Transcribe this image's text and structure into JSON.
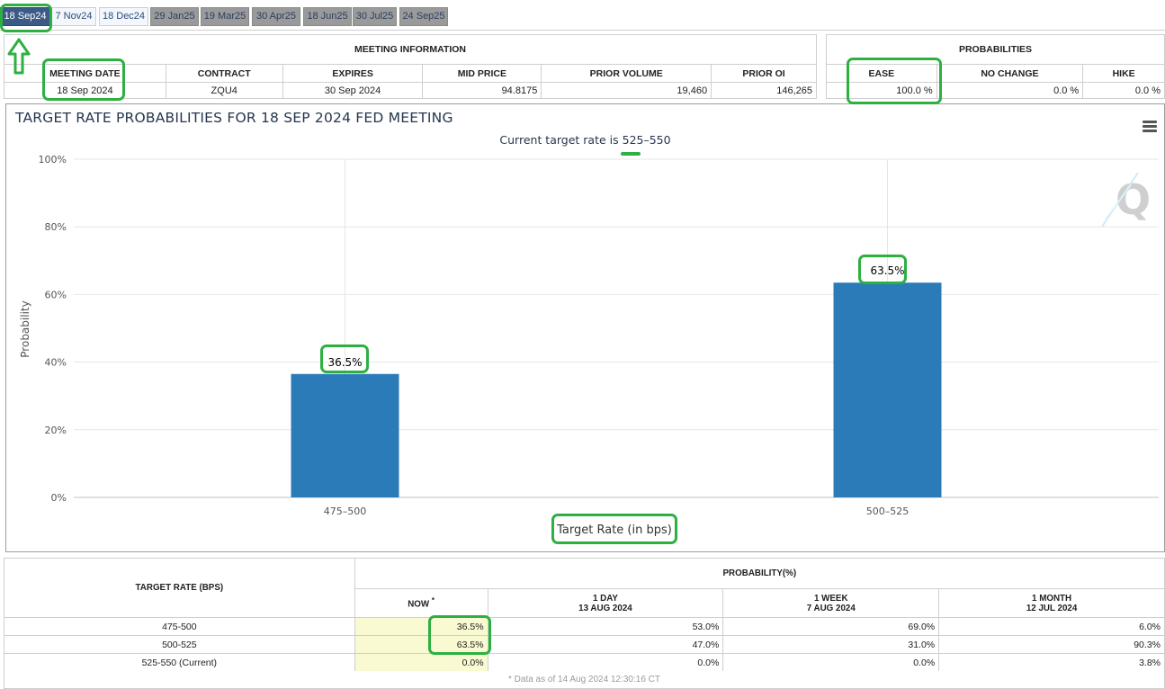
{
  "tabs": [
    {
      "label": "18 Sep24",
      "state": "active"
    },
    {
      "label": "7 Nov24",
      "state": "plain"
    },
    {
      "label": "18 Dec24",
      "state": "plain"
    },
    {
      "label": "29 Jan25",
      "state": "grey"
    },
    {
      "label": "19 Mar25",
      "state": "grey"
    },
    {
      "label": "30 Apr25",
      "state": "grey"
    },
    {
      "label": "18 Jun25",
      "state": "grey"
    },
    {
      "label": "30 Jul25",
      "state": "grey"
    },
    {
      "label": "24 Sep25",
      "state": "grey"
    }
  ],
  "meeting_info": {
    "section_title": "MEETING INFORMATION",
    "headers": {
      "meeting_date": "MEETING DATE",
      "contract": "CONTRACT",
      "expires": "EXPIRES",
      "mid_price": "MID PRICE",
      "prior_volume": "PRIOR VOLUME",
      "prior_oi": "PRIOR OI"
    },
    "values": {
      "meeting_date": "18 Sep 2024",
      "contract": "ZQU4",
      "expires": "30 Sep 2024",
      "mid_price": "94.8175",
      "prior_volume": "19,460",
      "prior_oi": "146,265"
    }
  },
  "probabilities": {
    "section_title": "PROBABILITIES",
    "headers": {
      "ease": "EASE",
      "no_change": "NO CHANGE",
      "hike": "HIKE"
    },
    "values": {
      "ease": "100.0 %",
      "no_change": "0.0 %",
      "hike": "0.0 %"
    }
  },
  "chart": {
    "title": "TARGET RATE PROBABILITIES FOR 18 SEP 2024 FED MEETING",
    "subtitle": "Current target rate is 525–550",
    "menu_icon": "hamburger-menu-icon",
    "watermark_icon": "q-logo-icon"
  },
  "chart_data": {
    "type": "bar",
    "title": "TARGET RATE PROBABILITIES FOR 18 SEP 2024 FED MEETING",
    "subtitle": "Current target rate is 525–550",
    "categories": [
      "475–500",
      "500–525"
    ],
    "values": [
      36.5,
      63.5
    ],
    "data_labels": [
      "36.5%",
      "63.5%"
    ],
    "xlabel": "Target Rate (in bps)",
    "ylabel": "Probability",
    "ylim": [
      0,
      100
    ],
    "yticks": [
      "0%",
      "20%",
      "40%",
      "60%",
      "80%",
      "100%"
    ],
    "grid": true,
    "bar_color": "#2b7bb9"
  },
  "prob_table": {
    "header_rate": "TARGET RATE (BPS)",
    "header_prob": "PROBABILITY(%)",
    "col_now": "NOW",
    "col_now_mark": "*",
    "col_day": {
      "line1": "1 DAY",
      "line2": "13 AUG 2024"
    },
    "col_week": {
      "line1": "1 WEEK",
      "line2": "7 AUG 2024"
    },
    "col_month": {
      "line1": "1 MONTH",
      "line2": "12 JUL 2024"
    },
    "rows": [
      {
        "rate": "475-500",
        "now": "36.5%",
        "day": "53.0%",
        "week": "69.0%",
        "month": "6.0%"
      },
      {
        "rate": "500-525",
        "now": "63.5%",
        "day": "47.0%",
        "week": "31.0%",
        "month": "90.3%"
      },
      {
        "rate": "525-550 (Current)",
        "now": "0.0%",
        "day": "0.0%",
        "week": "0.0%",
        "month": "3.8%"
      }
    ],
    "footnote": "* Data as of 14 Aug 2024 12:30:16 CT"
  },
  "colors": {
    "annotation": "#2db041",
    "active_tab": "#3b5b86",
    "bar": "#2b7bb9",
    "now_column": "#fafad2"
  }
}
